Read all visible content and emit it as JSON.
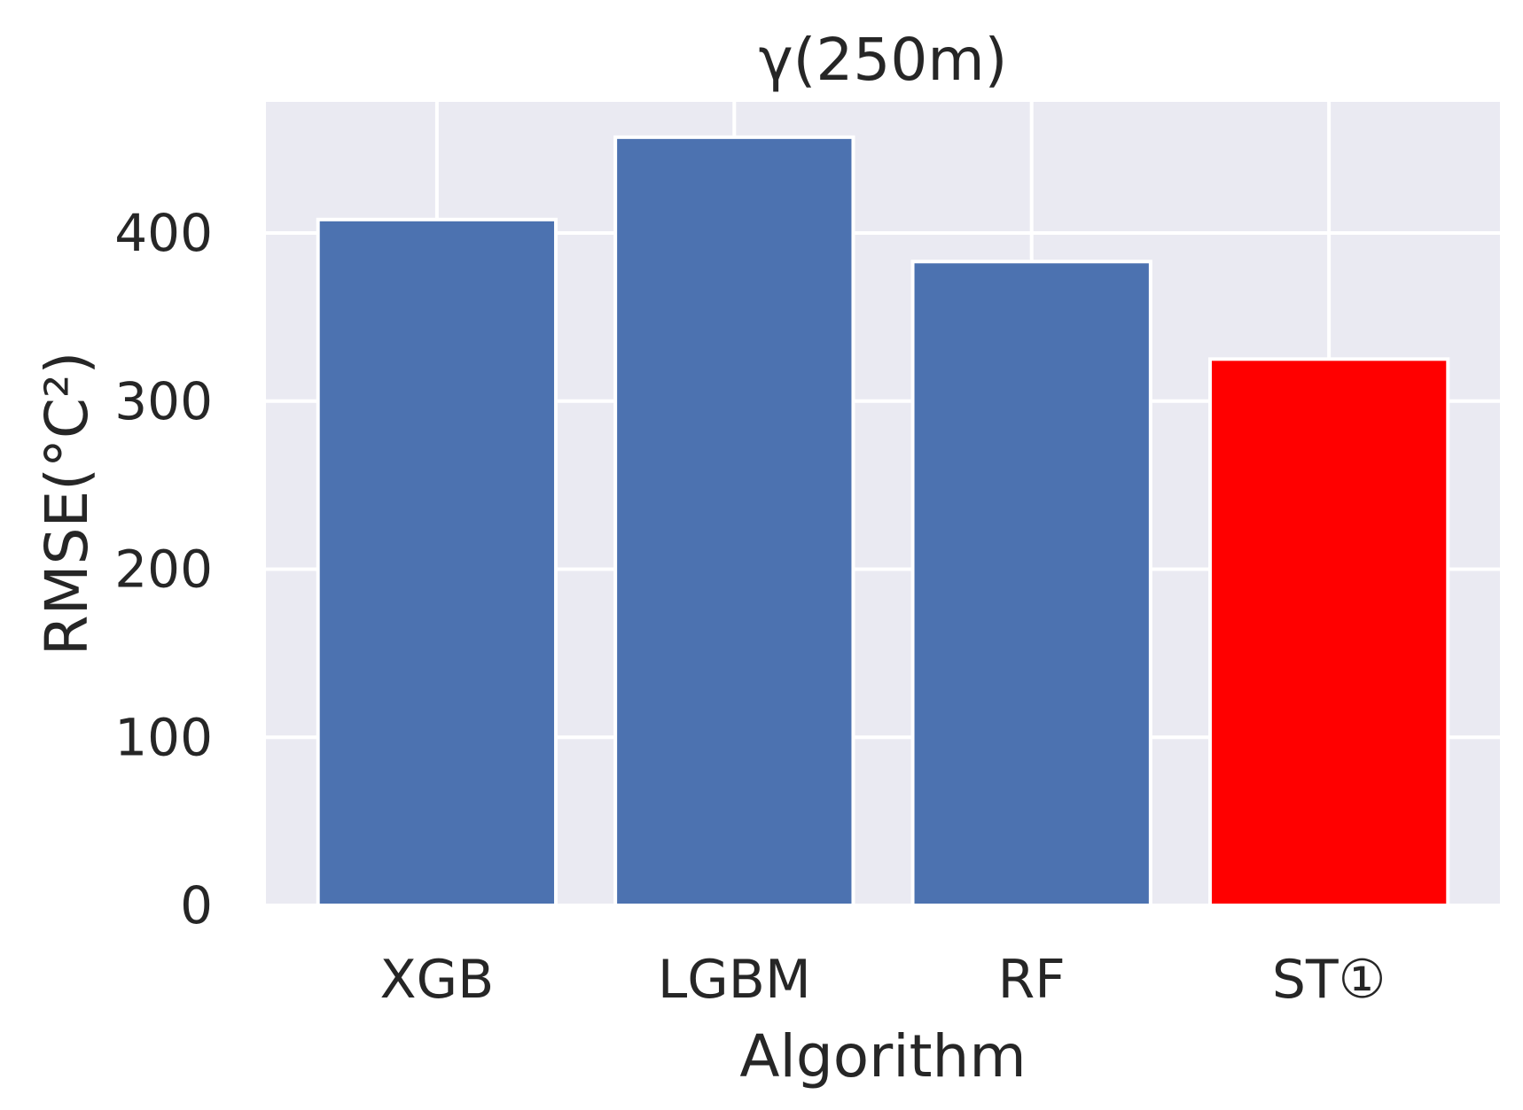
{
  "chart_data": {
    "type": "bar",
    "title": "γ(250m)",
    "xlabel": "Algorithm",
    "ylabel": "RMSE(°C²)",
    "categories": [
      "XGB",
      "LGBM",
      "RF",
      "ST①"
    ],
    "values": [
      408,
      457,
      383,
      325
    ],
    "bar_colors": [
      "#4c72b0",
      "#4c72b0",
      "#4c72b0",
      "#ff0000"
    ],
    "ylim": [
      0,
      478
    ],
    "yticks": [
      0,
      100,
      200,
      300,
      400
    ],
    "grid": true,
    "background": "#eaeaf2",
    "grid_color": "#ffffff"
  }
}
